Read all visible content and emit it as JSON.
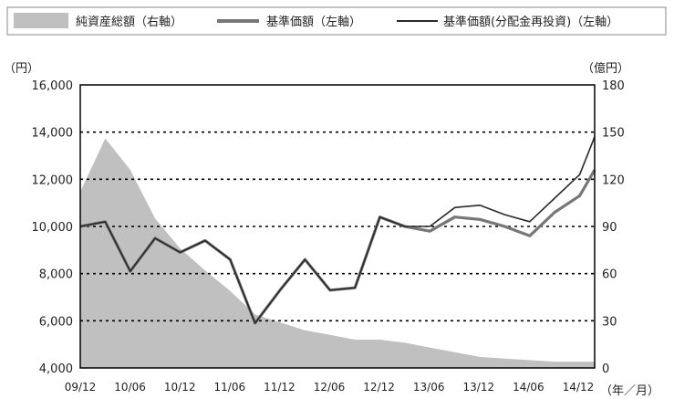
{
  "chart_data": {
    "type": "line",
    "left_axis": {
      "unit_label": "（円）",
      "ticks": [
        "16,000",
        "14,000",
        "12,000",
        "10,000",
        "8,000",
        "6,000",
        "4,000"
      ],
      "ylim": [
        4000,
        16000
      ]
    },
    "right_axis": {
      "unit_label": "（億円）",
      "ticks": [
        "180",
        "150",
        "120",
        "90",
        "60",
        "30",
        "0"
      ],
      "ylim": [
        0,
        180
      ]
    },
    "x_axis": {
      "unit_label": "（年／月）",
      "ticks": [
        "09/12",
        "10/06",
        "10/12",
        "11/06",
        "11/12",
        "12/06",
        "12/12",
        "13/06",
        "13/12",
        "14/06",
        "14/12"
      ]
    },
    "grid": "horizontal-dotted",
    "legend": [
      {
        "label": "純資産総額（右軸）",
        "color": "#c0c0c0",
        "style": "area"
      },
      {
        "label": "基準価額（左軸）",
        "color": "#777777",
        "style": "line"
      },
      {
        "label": "基準価額(分配金再投資)（左軸）",
        "color": "#2a2a2a",
        "style": "line"
      }
    ],
    "x": [
      0,
      0.5,
      1,
      1.5,
      2,
      2.5,
      3,
      3.5,
      4,
      4.5,
      5,
      5.5,
      6,
      6.5,
      7,
      7.5,
      8,
      8.5,
      9,
      9.5,
      10,
      10.3
    ],
    "series": [
      {
        "name": "純資産総額（右軸）",
        "axis": "right",
        "values": [
          112,
          146,
          126,
          95,
          76,
          62,
          49,
          34,
          29,
          24,
          21,
          18,
          18,
          16,
          13,
          10,
          7,
          6,
          5,
          4,
          4,
          4
        ]
      },
      {
        "name": "基準価額（左軸）",
        "axis": "left",
        "values": [
          10000,
          10200,
          8100,
          9500,
          8900,
          9400,
          8600,
          5900,
          7300,
          8600,
          7300,
          7400,
          10400,
          10000,
          9800,
          10400,
          10300,
          10000,
          9600,
          10600,
          11300,
          12400
        ]
      },
      {
        "name": "基準価額(分配金再投資)（左軸）",
        "axis": "left",
        "values": [
          10000,
          10200,
          8100,
          9500,
          8900,
          9400,
          8600,
          5900,
          7300,
          8600,
          7300,
          7400,
          10400,
          10000,
          10000,
          10800,
          10900,
          10500,
          10200,
          11200,
          12200,
          13800
        ]
      }
    ]
  }
}
